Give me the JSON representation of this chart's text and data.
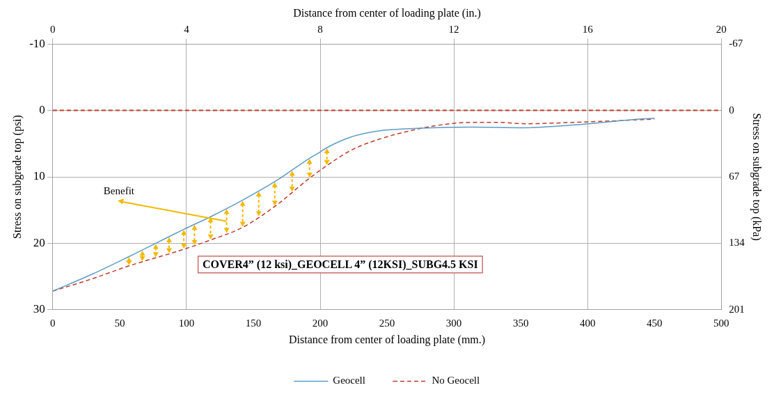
{
  "chart_data": {
    "type": "line",
    "xlabel": "Distance from center of loading plate (mm.)",
    "x2label": "Distance from center of loading plate (in.)",
    "ylabel": "Stress on subgrade top (psi)",
    "y2label": "Stress on subgrade top (kPa)",
    "annotations": [
      "Benefit",
      "COVER4” (12 ksi)_GEOCELL 4” (12KSI)_SUBG4.5 KSI"
    ],
    "series": [
      {
        "name": "Geocell",
        "color": "#5b9bc5",
        "line_style": "solid",
        "x": [
          0,
          30,
          57,
          98,
          118,
          142,
          167,
          192,
          198,
          205,
          223,
          243,
          273,
          313,
          353,
          389,
          439,
          450
        ],
        "values": [
          27.2,
          24.6,
          22.0,
          17.9,
          16.0,
          13.5,
          10.6,
          7.2,
          6.5,
          5.6,
          4.0,
          3.1,
          2.7,
          2.5,
          2.6,
          2.2,
          1.3,
          1.2
        ]
      },
      {
        "name": "No Geocell",
        "color": "#c0392b",
        "line_style": "dashed",
        "x": [
          0,
          30,
          57,
          98,
          118,
          142,
          167,
          192,
          205,
          223,
          243,
          273,
          293,
          313,
          333,
          353,
          389,
          439,
          450
        ],
        "values": [
          27.2,
          25.3,
          23.4,
          20.9,
          19.5,
          17.6,
          14.3,
          10.2,
          8.3,
          6.0,
          4.4,
          2.8,
          2.1,
          1.8,
          1.8,
          2.0,
          1.8,
          1.4,
          1.3
        ]
      }
    ],
    "ref_lines": [
      {
        "axis": "y",
        "value": 0,
        "color": "#c0392b",
        "line_style": "dashed"
      }
    ],
    "xlim": [
      0,
      500
    ],
    "xticks": [
      0,
      50,
      100,
      150,
      200,
      250,
      300,
      350,
      400,
      450,
      500
    ],
    "x2lim": [
      0,
      20
    ],
    "x2ticks": [
      0,
      4,
      8,
      12,
      16,
      20
    ],
    "ylim": [
      30,
      -10
    ],
    "yticks": [
      -10,
      0,
      10,
      20,
      30
    ],
    "y2lim": [
      201,
      -67
    ],
    "y2ticks": [
      -67,
      0,
      67,
      134,
      201
    ],
    "grid": true,
    "legend": "bottom",
    "marker": "none"
  }
}
